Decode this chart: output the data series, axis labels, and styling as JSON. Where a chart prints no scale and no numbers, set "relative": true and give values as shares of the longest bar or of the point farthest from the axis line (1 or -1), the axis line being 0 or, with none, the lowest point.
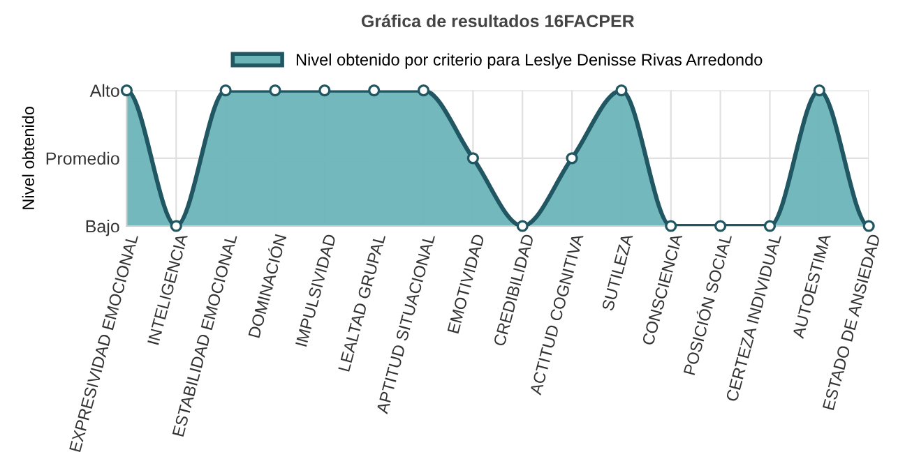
{
  "chart_data": {
    "type": "area",
    "title": "Gráfica de resultados 16FACPER",
    "ylabel": "Nivel obtenido",
    "categories": [
      "EXPRESIVIDAD EMOCIONAL",
      "INTELIGENCIA",
      "ESTABILIDAD EMOCIONAL",
      "DOMINACIÓN",
      "IMPULSIVIDAD",
      "LEALTAD GRUPAL",
      "APTITUD SITUACIONAL",
      "EMOTIVIDAD",
      "CREDIBILIDAD",
      "ACTITUD COGNITIVA",
      "SUTILEZA",
      "CONSCIENCIA",
      "POSICIÓN SOCIAL",
      "CERTEZA INDIVIDUAL",
      "AUTOESTIMA",
      "ESTADO DE ANSIEDAD"
    ],
    "series": [
      {
        "name": "Nivel obtenido por criterio para Leslye Denisse Rivas Arredondo",
        "color": "#6bb4b8",
        "values": [
          1,
          0,
          1,
          1,
          1,
          1,
          1,
          0.5,
          0,
          0.5,
          1,
          0,
          0,
          0,
          1,
          0
        ]
      }
    ],
    "relative": true,
    "y_categories": [
      "Alto",
      "Promedio",
      "Bajo"
    ],
    "grid": true,
    "legend": "top",
    "marker": "circle",
    "line_style": "solid"
  }
}
